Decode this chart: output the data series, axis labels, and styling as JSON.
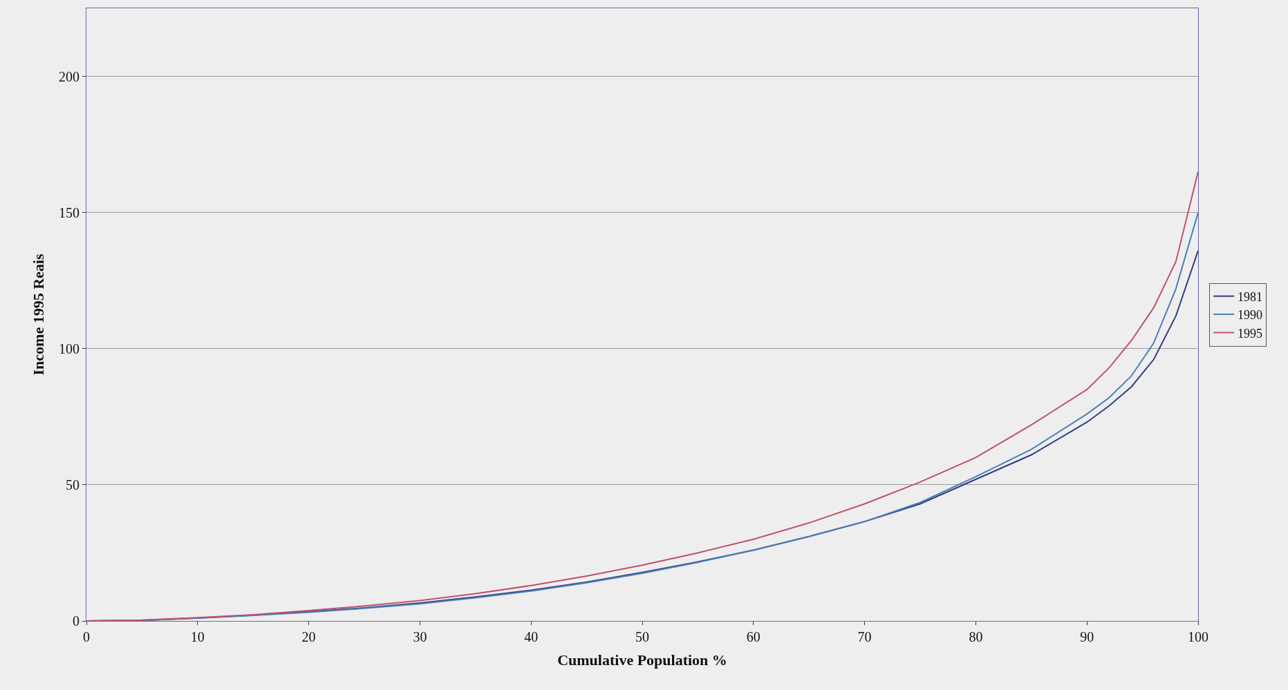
{
  "chart_data": {
    "type": "line",
    "xlabel": "Cumulative Population %",
    "ylabel": "Income 1995 Reais",
    "x": [
      0,
      5,
      10,
      15,
      20,
      25,
      30,
      35,
      40,
      45,
      50,
      55,
      60,
      65,
      70,
      75,
      80,
      85,
      90,
      92,
      94,
      96,
      98,
      100
    ],
    "series": [
      {
        "name": "1981",
        "color": "#333a80",
        "values": [
          0,
          0.2,
          1.1,
          2.1,
          3.4,
          4.8,
          6.6,
          8.8,
          11.3,
          14.3,
          17.8,
          21.7,
          26,
          31,
          36.5,
          43,
          52,
          61,
          73,
          79,
          86,
          96,
          112,
          136
        ]
      },
      {
        "name": "1990",
        "color": "#4a7fb5",
        "values": [
          0,
          0.2,
          1,
          2,
          3.2,
          4.6,
          6.3,
          8.5,
          11,
          14,
          17.5,
          21.5,
          26,
          31,
          36.5,
          43.5,
          53,
          63,
          76,
          82,
          90,
          102,
          122,
          150
        ]
      },
      {
        "name": "1995",
        "color": "#c0506e",
        "values": [
          0,
          0.3,
          1.2,
          2.3,
          3.8,
          5.5,
          7.5,
          10,
          13,
          16.5,
          20.5,
          25,
          30,
          36,
          43,
          51,
          60,
          72,
          85,
          93,
          103,
          115,
          132,
          165
        ]
      }
    ],
    "xlim": [
      0,
      100
    ],
    "xticks": [
      0,
      10,
      20,
      30,
      40,
      50,
      60,
      70,
      80,
      90,
      100
    ],
    "ylim": [
      0,
      225
    ],
    "yticks": [
      0,
      50,
      100,
      150,
      200
    ],
    "grid": "y",
    "legend": "right",
    "marker": "none",
    "line_style": "solid"
  }
}
